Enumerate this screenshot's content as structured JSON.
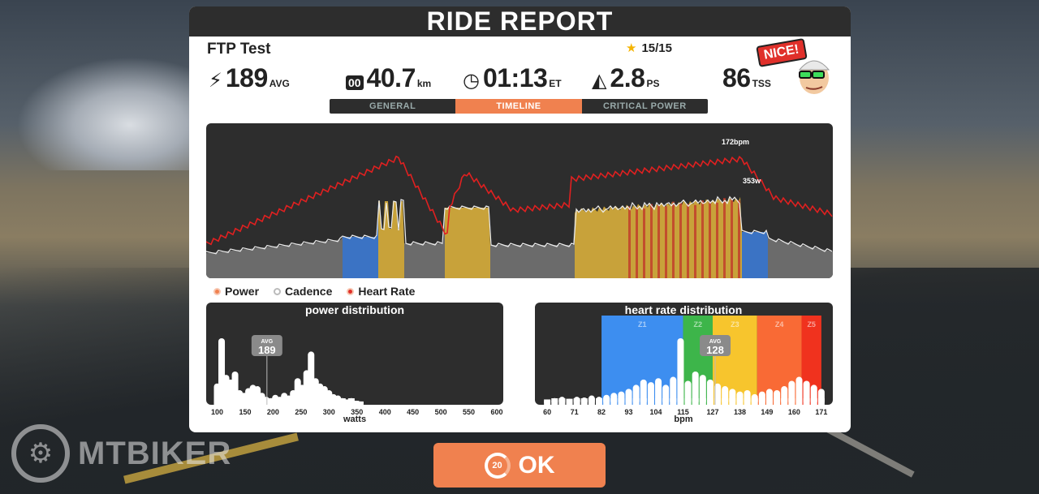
{
  "window": {
    "title": "RIDE REPORT"
  },
  "ride": {
    "name": "FTP Test",
    "stars": "15/15"
  },
  "stats": {
    "power": {
      "icon": "lightning-icon",
      "value": "189",
      "unit": "AVG"
    },
    "distance": {
      "icon": "odometer-icon",
      "value": "40.7",
      "unit": "km"
    },
    "time": {
      "icon": "clock-icon",
      "value": "01:13",
      "unit": "ET"
    },
    "pizza": {
      "icon": "pizza-icon",
      "value": "2.8",
      "unit": "PS"
    },
    "tss": {
      "value": "86",
      "unit": "TSS"
    }
  },
  "badge": {
    "text": "NICE!"
  },
  "tabs": [
    {
      "label": "GENERAL",
      "active": false
    },
    {
      "label": "TIMELINE",
      "active": true
    },
    {
      "label": "CRITICAL POWER",
      "active": false
    }
  ],
  "timeline": {
    "peak_hr_label": "172bpm",
    "peak_power_label": "353w"
  },
  "legend": [
    {
      "label": "Power"
    },
    {
      "label": "Cadence"
    },
    {
      "label": "Heart Rate"
    }
  ],
  "chart_data": [
    {
      "type": "bar",
      "title": "power distribution",
      "xlabel": "watts",
      "ticks": [
        "100",
        "150",
        "200",
        "250",
        "300",
        "350",
        "400",
        "450",
        "500",
        "550",
        "600"
      ],
      "xlim": [
        92,
        600
      ],
      "avg_label": "AVG",
      "avg_value": "189",
      "x": [
        100,
        108,
        116,
        124,
        132,
        140,
        148,
        156,
        164,
        172,
        180,
        188,
        196,
        204,
        212,
        220,
        228,
        236,
        244,
        252,
        260,
        268,
        276,
        284,
        292,
        300,
        308,
        316,
        324,
        332,
        340,
        348,
        356
      ],
      "values": [
        32,
        100,
        45,
        38,
        50,
        22,
        18,
        25,
        30,
        28,
        18,
        12,
        10,
        15,
        12,
        18,
        14,
        22,
        40,
        30,
        52,
        80,
        40,
        32,
        28,
        22,
        16,
        14,
        10,
        8,
        10,
        6,
        5
      ]
    },
    {
      "type": "bar",
      "title": "heart rate distribution",
      "xlabel": "bpm",
      "ticks": [
        "60",
        "71",
        "82",
        "93",
        "104",
        "115",
        "127",
        "138",
        "149",
        "160",
        "171"
      ],
      "xlim": [
        57,
        174
      ],
      "zones": [
        {
          "name": "Z1",
          "from": 82,
          "to": 115,
          "color": "#3d8ef0"
        },
        {
          "name": "Z2",
          "from": 115,
          "to": 127,
          "color": "#3db54a"
        },
        {
          "name": "Z3",
          "from": 127,
          "to": 145,
          "color": "#f7c52d"
        },
        {
          "name": "Z4",
          "from": 145,
          "to": 163,
          "color": "#f96a35"
        },
        {
          "name": "Z5",
          "from": 163,
          "to": 171,
          "color": "#f0321e"
        }
      ],
      "avg_label": "AVG",
      "avg_value": "128",
      "x": [
        60,
        63,
        66,
        69,
        72,
        75,
        78,
        81,
        84,
        87,
        90,
        93,
        96,
        99,
        102,
        105,
        108,
        111,
        114,
        117,
        120,
        123,
        126,
        129,
        132,
        135,
        138,
        141,
        144,
        147,
        150,
        153,
        156,
        159,
        162,
        165,
        168,
        171
      ],
      "values": [
        8,
        10,
        12,
        9,
        12,
        11,
        14,
        12,
        15,
        18,
        20,
        24,
        30,
        38,
        34,
        40,
        30,
        42,
        100,
        36,
        50,
        45,
        38,
        32,
        28,
        24,
        20,
        22,
        16,
        20,
        24,
        22,
        28,
        36,
        42,
        36,
        30,
        24
      ]
    }
  ],
  "ok_button": {
    "label": "OK",
    "countdown": "20"
  },
  "watermark": {
    "text": "MTBIKER"
  }
}
